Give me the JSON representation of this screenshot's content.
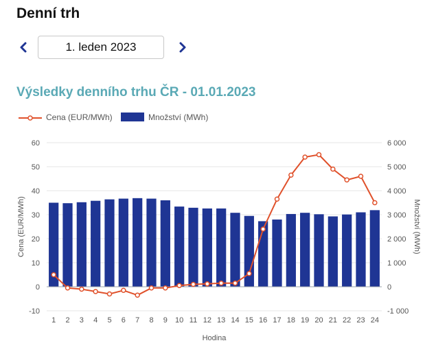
{
  "page": {
    "title": "Denní trh"
  },
  "date_nav": {
    "date": "1. leden 2023",
    "prev_icon": "chevron-left-icon",
    "next_icon": "chevron-right-icon"
  },
  "colors": {
    "accent_title": "#5aa9b5",
    "bar": "#1f3594",
    "line": "#e0512b",
    "nav_arrow": "#1f3594",
    "grid": "#e6e6e6"
  },
  "chart_data": {
    "type": "bar",
    "title": "Výsledky denního trhu ČR - 01.01.2023",
    "xlabel": "Hodina",
    "ylabel_left": "Cena (EUR/MWh)",
    "ylabel_right": "Množství (MWh)",
    "categories": [
      "1",
      "2",
      "3",
      "4",
      "5",
      "6",
      "7",
      "8",
      "9",
      "10",
      "11",
      "12",
      "13",
      "14",
      "15",
      "16",
      "17",
      "18",
      "19",
      "20",
      "21",
      "22",
      "23",
      "24"
    ],
    "ylim_left": [
      -10,
      60
    ],
    "ylim_right": [
      -1000,
      6000
    ],
    "yticks_left": [
      "-10",
      "0",
      "10",
      "20",
      "30",
      "40",
      "50",
      "60"
    ],
    "yticks_right": [
      "-1 000",
      "0",
      "1 000",
      "2 000",
      "3 000",
      "4 000",
      "5 000",
      "6 000"
    ],
    "grid": true,
    "legend_position": "top-left",
    "series": [
      {
        "name": "Cena (EUR/MWh)",
        "type": "line",
        "axis": "left",
        "values": [
          5,
          -0.5,
          -1,
          -2,
          -3,
          -1.5,
          -3.5,
          -0.5,
          -0.5,
          0.5,
          1,
          1.2,
          1.5,
          1.5,
          5.5,
          24,
          36.5,
          46.5,
          54,
          55,
          49,
          44.5,
          46,
          35
        ]
      },
      {
        "name": "Množství (MWh)",
        "type": "bar",
        "axis": "right",
        "values": [
          3500,
          3480,
          3520,
          3580,
          3640,
          3670,
          3690,
          3670,
          3600,
          3340,
          3290,
          3260,
          3260,
          3080,
          2950,
          2730,
          2800,
          3030,
          3080,
          3020,
          2930,
          3010,
          3100,
          3190
        ]
      }
    ]
  }
}
